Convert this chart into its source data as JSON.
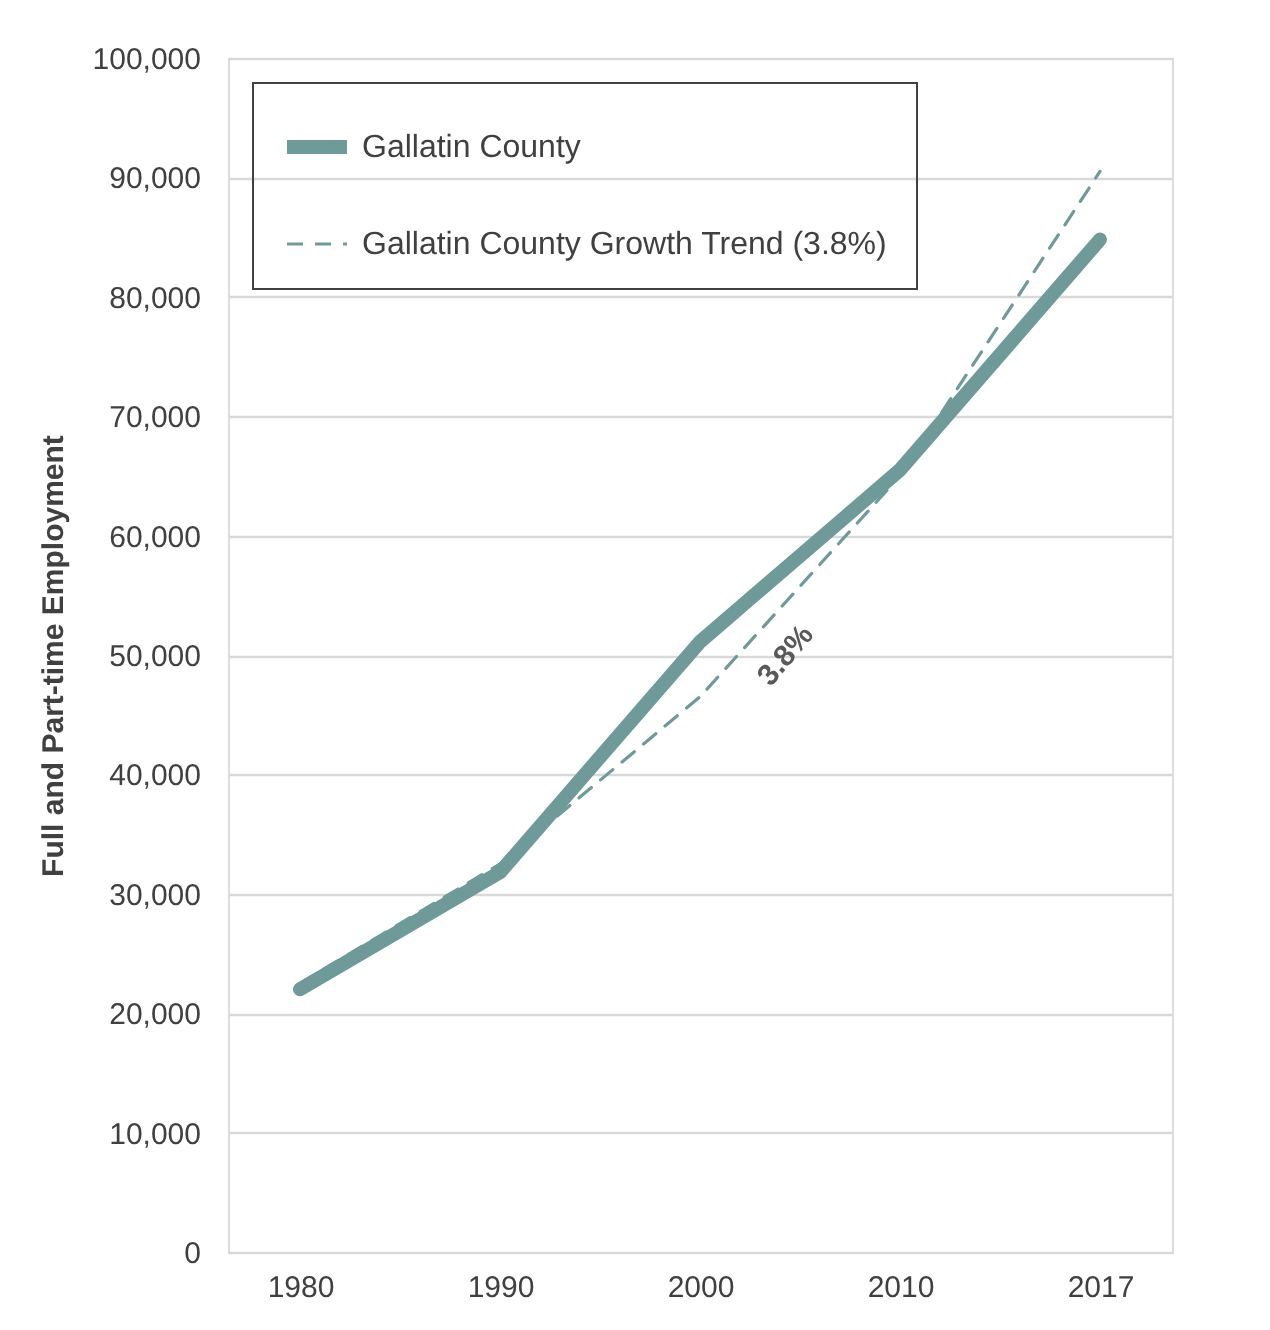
{
  "chart_data": {
    "type": "line",
    "ylabel": "Full and Part-time Employment",
    "categories": [
      "1980",
      "1990",
      "2000",
      "2010",
      "2017"
    ],
    "series": [
      {
        "name": "Gallatin County",
        "color": "#6f9a9a",
        "line_style": "solid",
        "values": [
          22000,
          31800,
          51100,
          65500,
          84800
        ]
      },
      {
        "name": "Gallatin County Growth Trend (3.8%)",
        "color": "#6f9a9a",
        "line_style": "dashed",
        "values": [
          22500,
          32500,
          46500,
          65000,
          90500
        ]
      }
    ],
    "ylim": [
      0,
      100000
    ],
    "yticks": [
      0,
      {
        "value": 10000,
        "label": "10,000"
      },
      {
        "value": 20000,
        "label": "20,000"
      },
      {
        "value": 30000,
        "label": "30,000"
      },
      {
        "value": 40000,
        "label": "40,000"
      },
      {
        "value": 50000,
        "label": "50,000"
      },
      {
        "value": 60000,
        "label": "60,000"
      },
      {
        "value": 70000,
        "label": "70,000"
      },
      {
        "value": 80000,
        "label": "80,000"
      },
      {
        "value": 90000,
        "label": "90,000"
      },
      {
        "value": 100000,
        "label": "100,000"
      }
    ],
    "grid": "y",
    "legend": "top left",
    "marker": "none",
    "annotations": [
      "3.8%"
    ]
  }
}
